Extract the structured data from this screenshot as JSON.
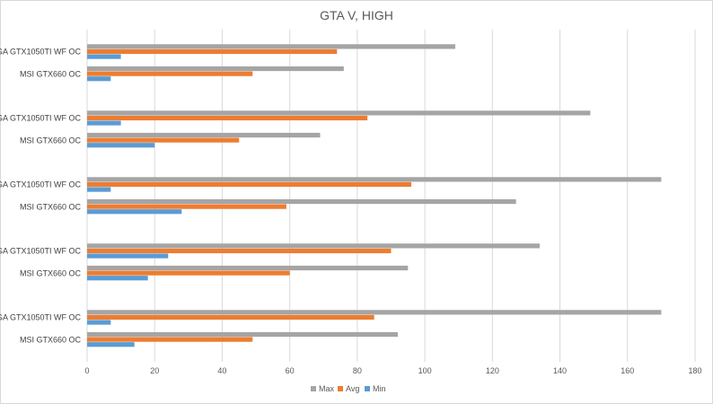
{
  "chart_data": {
    "type": "bar",
    "orientation": "horizontal",
    "title": "GTA V, HIGH",
    "xlabel": "",
    "ylabel": "",
    "xlim": [
      0,
      180
    ],
    "x_ticks": [
      0,
      20,
      40,
      60,
      80,
      100,
      120,
      140,
      160,
      180
    ],
    "grid": "vertical",
    "legend_position": "bottom",
    "categories": [
      "GA GTX1050TI WF OC",
      "MSI GTX660 OC",
      "GA GTX1050TI WF OC",
      "MSI GTX660 OC",
      "GA GTX1050TI WF OC",
      "MSI GTX660 OC",
      "GA GTX1050TI WF OC",
      "MSI GTX660 OC",
      "GA GTX1050TI WF OC",
      "MSI GTX660 OC"
    ],
    "groups": 5,
    "series": [
      {
        "name": "Max",
        "color": "#a5a5a5",
        "values": [
          109,
          76,
          149,
          69,
          170,
          127,
          134,
          95,
          170,
          92
        ]
      },
      {
        "name": "Avg",
        "color": "#ed7d31",
        "values": [
          74,
          49,
          83,
          45,
          96,
          59,
          90,
          60,
          85,
          49
        ]
      },
      {
        "name": "Min",
        "color": "#5b9bd5",
        "values": [
          10,
          7,
          10,
          20,
          7,
          28,
          24,
          18,
          7,
          14
        ]
      }
    ]
  }
}
